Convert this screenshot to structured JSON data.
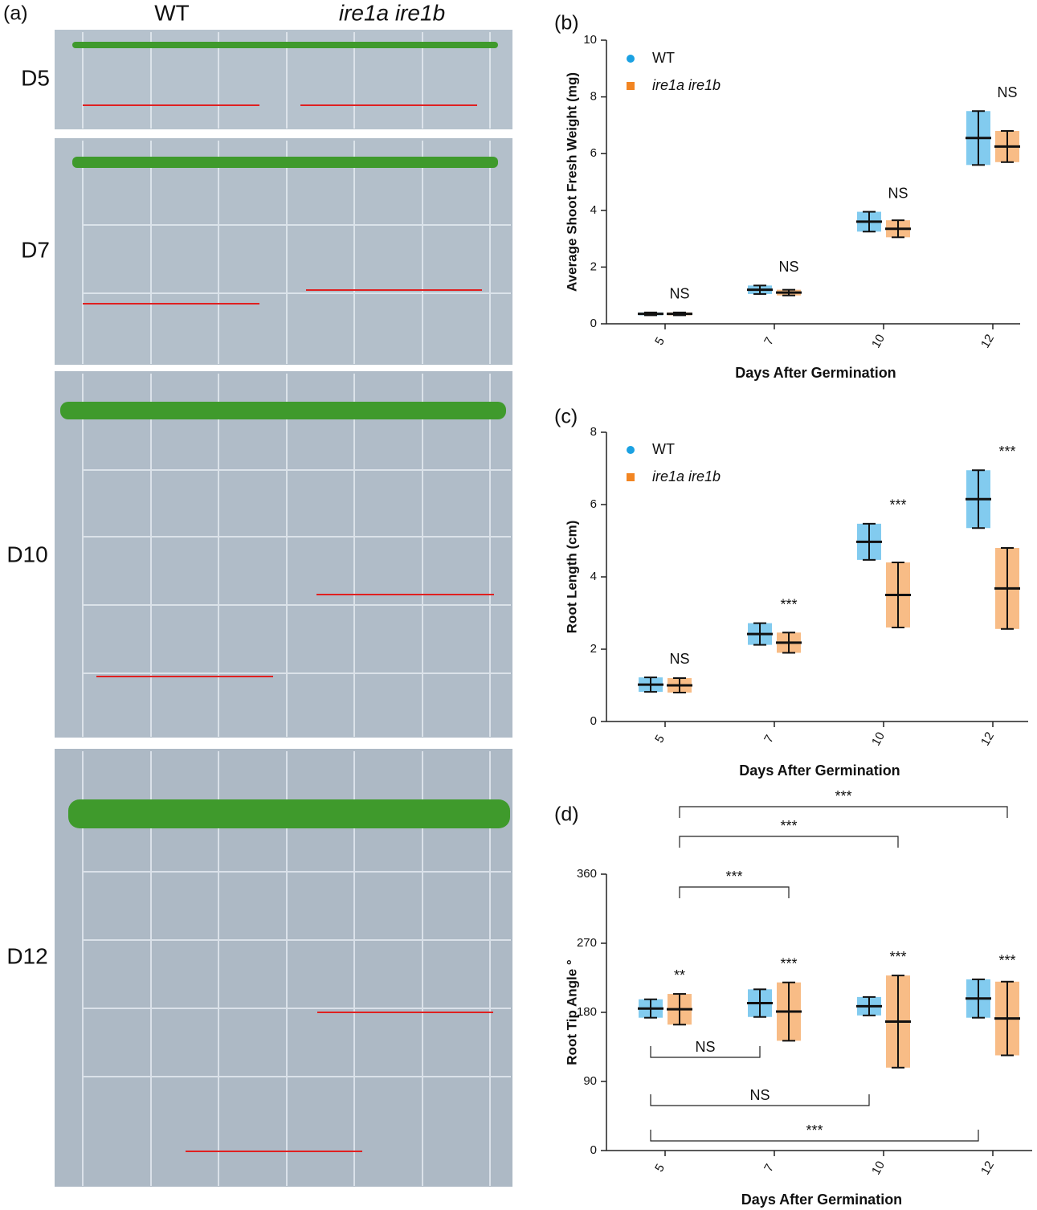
{
  "panel_a": {
    "panel_label": "(a)",
    "columns": [
      "WT",
      "ire1a ire1b"
    ],
    "rows": [
      "D5",
      "D7",
      "D10",
      "D12"
    ]
  },
  "chart_data": [
    {
      "type": "scatter-mean-sd",
      "panel_label": "(b)",
      "y_label": "Average  Shoot  Fresh Weight (mg)",
      "x_label": "Days After Germination",
      "categories": [
        "5",
        "7",
        "10",
        "12"
      ],
      "ylim": [
        0,
        10
      ],
      "yticks": [
        0,
        2,
        4,
        6,
        8,
        10
      ],
      "series": [
        {
          "name": "WT",
          "color": "#1ba1e2",
          "values": [
            0.35,
            1.2,
            3.6,
            6.55
          ],
          "sd": [
            0.05,
            0.15,
            0.35,
            0.95
          ]
        },
        {
          "name": "ire1a ire1b",
          "color": "#f28522",
          "values": [
            0.35,
            1.1,
            3.35,
            6.25
          ],
          "sd": [
            0.05,
            0.1,
            0.3,
            0.55
          ]
        }
      ],
      "annotations": [
        "NS",
        "NS",
        "NS",
        "NS"
      ]
    },
    {
      "type": "scatter-mean-sd",
      "panel_label": "(c)",
      "y_label": "Root Length (cm)",
      "x_label": "Days After Germination",
      "categories": [
        "5",
        "7",
        "10",
        "12"
      ],
      "ylim": [
        0,
        8
      ],
      "yticks": [
        0,
        2,
        4,
        6,
        8
      ],
      "series": [
        {
          "name": "WT",
          "color": "#1ba1e2",
          "values": [
            1.02,
            2.42,
            4.97,
            6.15
          ],
          "sd": [
            0.2,
            0.3,
            0.5,
            0.8
          ]
        },
        {
          "name": "ire1a ire1b",
          "color": "#f28522",
          "values": [
            1.0,
            2.18,
            3.5,
            3.68
          ],
          "sd": [
            0.2,
            0.28,
            0.9,
            1.12
          ]
        }
      ],
      "annotations": [
        "NS",
        "***",
        "***",
        "***"
      ]
    },
    {
      "type": "scatter-mean-sd",
      "panel_label": "(d)",
      "y_label": "Root Tip Angle °",
      "x_label": "Days After Germination",
      "categories": [
        "5",
        "7",
        "10",
        "12"
      ],
      "ylim": [
        0,
        360
      ],
      "yticks": [
        0,
        90,
        180,
        270,
        360
      ],
      "series": [
        {
          "name": "WT",
          "color": "#1ba1e2",
          "values": [
            185,
            192,
            188,
            198
          ],
          "sd": [
            12,
            18,
            12,
            25
          ]
        },
        {
          "name": "ire1a ire1b",
          "color": "#f28522",
          "values": [
            184,
            181,
            168,
            172
          ],
          "sd": [
            20,
            38,
            60,
            48
          ]
        }
      ],
      "annotations": [
        "**",
        "***",
        "***",
        "***"
      ],
      "brackets": [
        "***",
        "***",
        "***",
        "NS",
        "NS",
        "***"
      ]
    }
  ]
}
